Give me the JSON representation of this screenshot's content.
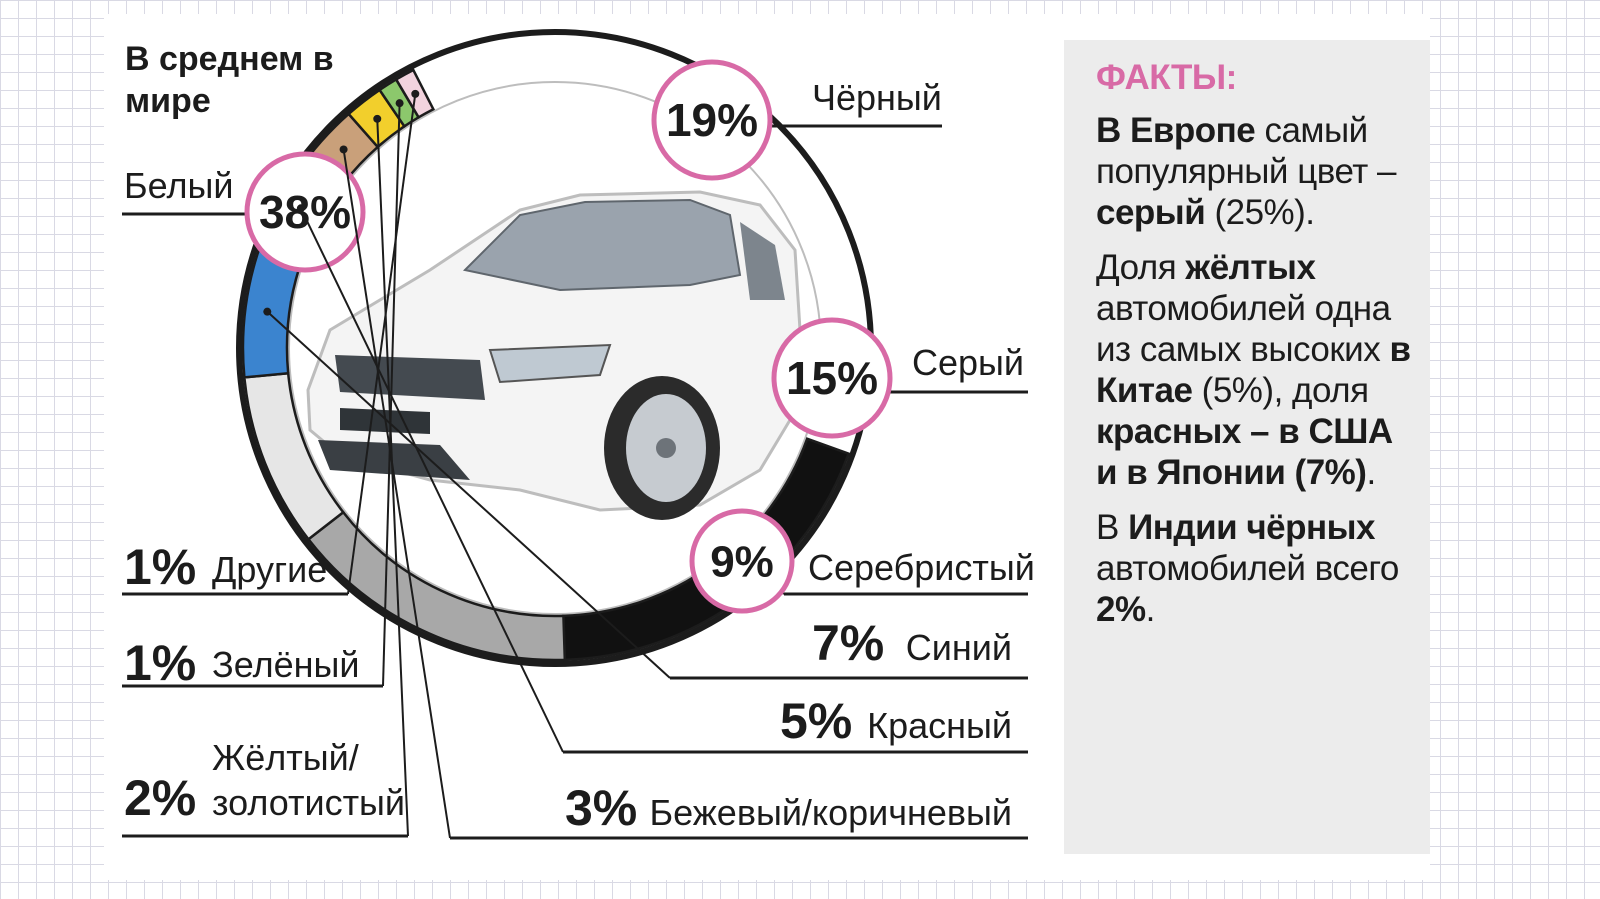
{
  "chart_data": {
    "type": "pie",
    "title": "В среднем в мире",
    "categories": [
      "Белый",
      "Чёрный",
      "Серый",
      "Серебристый",
      "Синий",
      "Красный",
      "Бежевый/коричневый",
      "Жёлтый/ золотистый",
      "Зелёный",
      "Другие"
    ],
    "values": [
      38,
      19,
      15,
      9,
      7,
      5,
      3,
      2,
      1,
      1
    ],
    "slices": [
      {
        "label": "Белый",
        "value": 38,
        "pct": "38%",
        "color": "#ffffff"
      },
      {
        "label": "Чёрный",
        "value": 19,
        "pct": "19%",
        "color": "#111111"
      },
      {
        "label": "Серый",
        "value": 15,
        "pct": "15%",
        "color": "#a8a8a8"
      },
      {
        "label": "Серебристый",
        "value": 9,
        "pct": "9%",
        "color": "#e6e6e6"
      },
      {
        "label": "Синий",
        "value": 7,
        "pct": "7%",
        "color": "#3b84cf"
      },
      {
        "label": "Красный",
        "value": 5,
        "pct": "5%",
        "color": "#d4242c"
      },
      {
        "label": "Бежевый/коричневый",
        "value": 3,
        "pct": "3%",
        "color": "#c9a07a"
      },
      {
        "label": "Жёлтый/ золотистый",
        "value": 2,
        "pct": "2%",
        "color": "#f2cf2c"
      },
      {
        "label": "Зелёный",
        "value": 1,
        "pct": "1%",
        "color": "#8cc86c"
      },
      {
        "label": "Другие",
        "value": 1,
        "pct": "1%",
        "color": "#f2d3de"
      }
    ]
  },
  "colors": {
    "accent": "#d86aa6",
    "facts_bg": "#ececec",
    "ring_outline": "#1c1c1c"
  },
  "facts": {
    "title": "ФАКТЫ:",
    "p1": {
      "b1": "В Европе",
      "t1": " самый популярный цвет – ",
      "b2": "серый",
      "t2": " (25%)."
    },
    "p2": {
      "t1": "Доля ",
      "b1": "жёлтых",
      "t2": " автомобилей одна из самых высоких ",
      "b2": "в Китае",
      "t3": " (5%), доля ",
      "b3": "красных – в США и в Японии (7%)",
      "t4": "."
    },
    "p3": {
      "t1": "В ",
      "b1": "Индии чёрных",
      "t2": " автомобилей всего ",
      "b2": "2%",
      "t3": "."
    }
  }
}
